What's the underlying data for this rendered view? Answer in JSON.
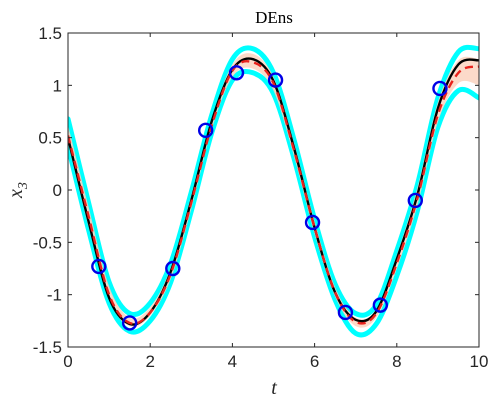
{
  "chart_data": {
    "type": "line",
    "title": "DEns",
    "xlabel": "t",
    "ylabel_base": "x",
    "ylabel_sub": "3",
    "xlim": [
      0,
      10
    ],
    "ylim": [
      -1.5,
      1.5
    ],
    "xticks": [
      0,
      2,
      4,
      6,
      8,
      10
    ],
    "xtick_labels": [
      "0",
      "2",
      "4",
      "6",
      "8",
      "10"
    ],
    "yticks": [
      -1.5,
      -1,
      -0.5,
      0,
      0.5,
      1,
      1.5
    ],
    "ytick_labels": [
      "-1.5",
      "-1",
      "-0.5",
      "0",
      "0.5",
      "1",
      "1.5"
    ],
    "grid": false,
    "colors": {
      "true_solution": "#000000",
      "mean_prediction": "#e8221c",
      "uncertainty_band": "#fbd3bf",
      "ensemble_members": "#00ffff",
      "observations": "#0000e6"
    },
    "series": [
      {
        "kind": "ensemble",
        "x": [
          0,
          0.5,
          1,
          1.5,
          2,
          2.5,
          3,
          3.5,
          4,
          4.5,
          5,
          5.5,
          6,
          6.5,
          7,
          7.5,
          8,
          8.5,
          9,
          9.5,
          10
        ],
        "lower": [
          0.42,
          -0.38,
          -1.08,
          -1.35,
          -1.25,
          -0.88,
          -0.2,
          0.55,
          1.05,
          1.12,
          0.92,
          0.3,
          -0.45,
          -1.05,
          -1.37,
          -1.28,
          -0.82,
          -0.2,
          0.6,
          0.95,
          0.88
        ],
        "upper": [
          0.68,
          -0.12,
          -0.88,
          -1.18,
          -1.08,
          -0.7,
          -0.02,
          0.72,
          1.25,
          1.35,
          1.12,
          0.48,
          -0.28,
          -0.9,
          -1.18,
          -1.1,
          -0.58,
          0.05,
          0.88,
          1.32,
          1.35
        ]
      },
      {
        "kind": "band",
        "x": [
          0,
          0.5,
          1,
          1.5,
          2,
          2.5,
          3,
          3.5,
          4,
          4.5,
          5,
          5.5,
          6,
          6.5,
          7,
          7.5,
          8,
          8.5,
          9,
          9.5,
          10
        ],
        "lower": [
          0.45,
          -0.35,
          -1.05,
          -1.3,
          -1.2,
          -0.85,
          -0.18,
          0.58,
          1.08,
          1.16,
          0.95,
          0.32,
          -0.42,
          -1.02,
          -1.3,
          -1.22,
          -0.75,
          -0.15,
          0.65,
          1.02,
          1.0
        ],
        "upper": [
          0.62,
          -0.16,
          -0.92,
          -1.22,
          -1.12,
          -0.74,
          -0.05,
          0.68,
          1.2,
          1.3,
          1.08,
          0.45,
          -0.3,
          -0.93,
          -1.22,
          -1.14,
          -0.62,
          0.02,
          0.84,
          1.24,
          1.25
        ]
      },
      {
        "kind": "mean",
        "x": [
          0,
          0.5,
          1,
          1.5,
          2,
          2.5,
          3,
          3.5,
          4,
          4.5,
          5,
          5.5,
          6,
          6.5,
          7,
          7.5,
          8,
          8.5,
          9,
          9.5,
          10
        ],
        "y": [
          0.52,
          -0.25,
          -1.0,
          -1.27,
          -1.17,
          -0.8,
          -0.12,
          0.62,
          1.14,
          1.22,
          1.02,
          0.38,
          -0.36,
          -0.98,
          -1.26,
          -1.18,
          -0.7,
          -0.08,
          0.72,
          1.12,
          1.18
        ]
      },
      {
        "kind": "truth",
        "x": [
          0,
          0.5,
          1,
          1.5,
          2,
          2.5,
          3,
          3.5,
          4,
          4.5,
          5,
          5.5,
          6,
          6.5,
          7,
          7.5,
          8,
          8.5,
          9,
          9.5,
          10
        ],
        "y": [
          0.5,
          -0.3,
          -1.03,
          -1.28,
          -1.17,
          -0.78,
          -0.1,
          0.66,
          1.15,
          1.25,
          1.04,
          0.4,
          -0.36,
          -0.98,
          -1.24,
          -1.16,
          -0.66,
          -0.05,
          0.78,
          1.2,
          1.24
        ]
      },
      {
        "kind": "observations",
        "x": [
          0.75,
          1.5,
          2.55,
          3.35,
          4.1,
          5.05,
          5.95,
          6.75,
          7.6,
          8.45,
          9.05
        ],
        "y": [
          -0.73,
          -1.27,
          -0.75,
          0.57,
          1.12,
          1.05,
          -0.31,
          -1.17,
          -1.1,
          -0.1,
          0.97
        ]
      }
    ]
  }
}
